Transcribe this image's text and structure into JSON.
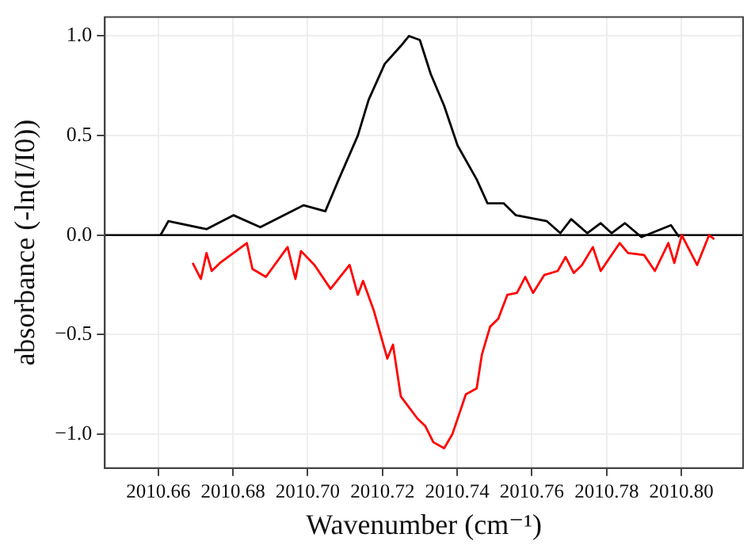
{
  "chart_data": {
    "type": "line",
    "xlabel": "Wavenumber (cm⁻¹)",
    "ylabel": "absorbance (-ln(I/I0))",
    "xlim": [
      2010.6457,
      2010.8165
    ],
    "ylim": [
      -1.17,
      1.095
    ],
    "xticks": [
      {
        "value": 2010.66,
        "label": "2010.66"
      },
      {
        "value": 2010.68,
        "label": "2010.68"
      },
      {
        "value": 2010.7,
        "label": "2010.70"
      },
      {
        "value": 2010.72,
        "label": "2010.72"
      },
      {
        "value": 2010.74,
        "label": "2010.74"
      },
      {
        "value": 2010.76,
        "label": "2010.76"
      },
      {
        "value": 2010.78,
        "label": "2010.78"
      },
      {
        "value": 2010.8,
        "label": "2010.80"
      }
    ],
    "yticks": [
      {
        "value": -1,
        "label": "−1.0"
      },
      {
        "value": -0.5,
        "label": "−0.5"
      },
      {
        "value": 0,
        "label": "0.0"
      },
      {
        "value": 0.5,
        "label": "0.5"
      },
      {
        "value": 1,
        "label": "1.0"
      }
    ],
    "grid": true,
    "legend": false,
    "marker": "none",
    "line_style": "solid",
    "ref_lines": [
      {
        "axis": "y",
        "value": 0,
        "color": "#000000"
      }
    ],
    "series": [
      {
        "color": "#000000",
        "x": [
          2010.6606,
          2010.6627,
          2010.6729,
          2010.6801,
          2010.6873,
          2010.6989,
          2010.7047,
          2010.7083,
          2010.7134,
          2010.7163,
          2010.7206,
          2010.7249,
          2010.7271,
          2010.73,
          2010.7329,
          2010.7365,
          2010.7401,
          2010.7452,
          2010.7481,
          2010.7524,
          2010.7557,
          2010.764,
          2010.7676,
          2010.7705,
          2010.7748,
          2010.7784,
          2010.7813,
          2010.7849,
          2010.7893,
          2010.7972,
          2010.7994
        ],
        "values": [
          0,
          0.07,
          0.03,
          0.1,
          0.04,
          0.15,
          0.12,
          0.28,
          0.5,
          0.68,
          0.86,
          0.95,
          1.0,
          0.98,
          0.81,
          0.65,
          0.45,
          0.28,
          0.16,
          0.16,
          0.1,
          0.07,
          0.01,
          0.08,
          0.01,
          0.06,
          0.01,
          0.06,
          -0.01,
          0.05,
          -0.01
        ]
      },
      {
        "color": "#ff0000",
        "x": [
          2010.6692,
          2010.6714,
          2010.6729,
          2010.6743,
          2010.6765,
          2010.6837,
          2010.6852,
          2010.6888,
          2010.6946,
          2010.6967,
          2010.6982,
          2010.7018,
          2010.7061,
          2010.7112,
          2010.7134,
          2010.7148,
          2010.7177,
          2010.7213,
          2010.7228,
          2010.7249,
          2010.7293,
          2010.7315,
          2010.7336,
          2010.7365,
          2010.7387,
          2010.7423,
          2010.7452,
          2010.7466,
          2010.7488,
          2010.751,
          2010.7534,
          2010.756,
          2010.7582,
          2010.7603,
          2010.7633,
          2010.7669,
          2010.769,
          2010.7712,
          2010.7734,
          2010.7763,
          2010.7784,
          2010.7835,
          2010.7857,
          2010.79,
          2010.7929,
          2010.7965,
          2010.7981,
          2010.8001,
          2010.8042,
          2010.8074,
          2010.8088
        ],
        "values": [
          -0.14,
          -0.22,
          -0.09,
          -0.18,
          -0.14,
          -0.04,
          -0.17,
          -0.21,
          -0.06,
          -0.22,
          -0.08,
          -0.15,
          -0.27,
          -0.15,
          -0.3,
          -0.23,
          -0.38,
          -0.62,
          -0.55,
          -0.81,
          -0.92,
          -0.96,
          -1.04,
          -1.07,
          -1.0,
          -0.8,
          -0.77,
          -0.6,
          -0.46,
          -0.42,
          -0.3,
          -0.29,
          -0.21,
          -0.29,
          -0.2,
          -0.18,
          -0.11,
          -0.19,
          -0.15,
          -0.06,
          -0.18,
          -0.04,
          -0.09,
          -0.1,
          -0.18,
          -0.04,
          -0.14,
          0.0,
          -0.15,
          0.0,
          -0.02
        ]
      }
    ]
  }
}
